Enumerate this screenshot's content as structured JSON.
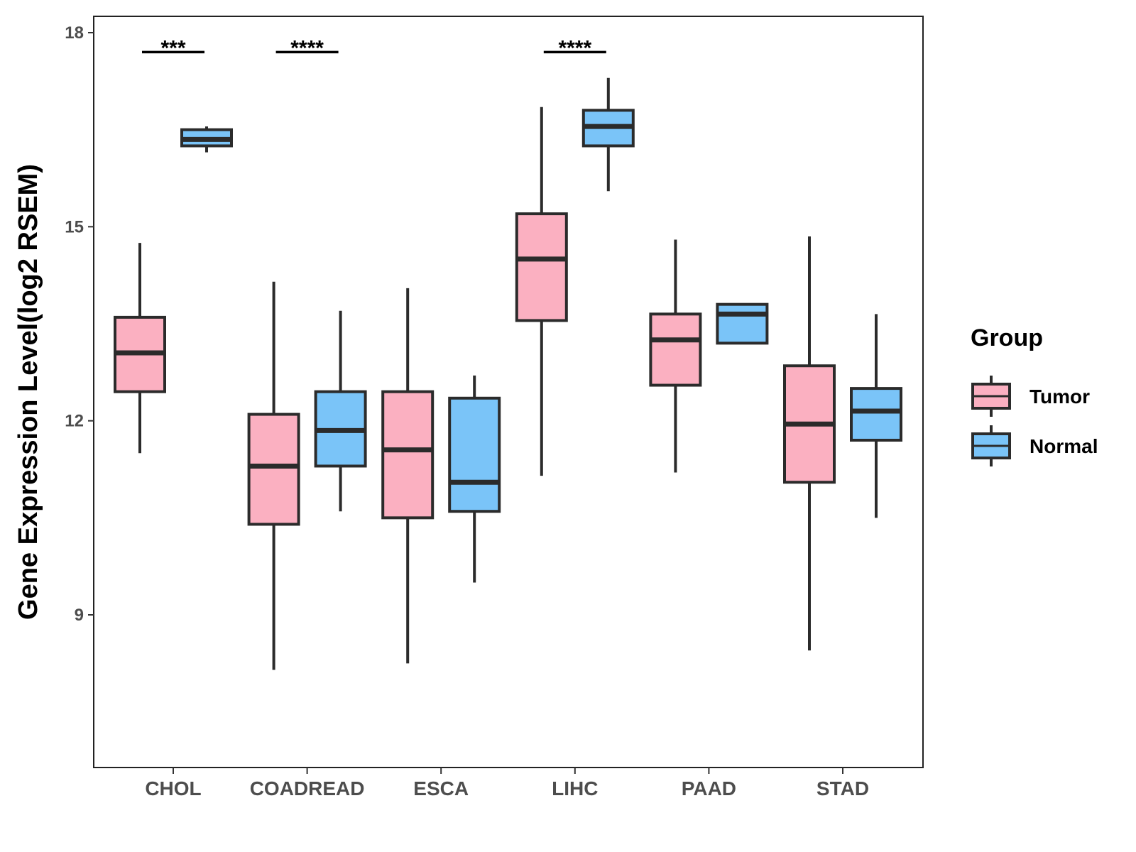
{
  "chart_data": {
    "type": "box",
    "title": "",
    "xlabel": "",
    "ylabel": "Gene Expression Level(log2 RSEM)",
    "ylim": [
      6.6,
      18.25
    ],
    "yticks": [
      9,
      12,
      15,
      18
    ],
    "yticklabels": [
      "9",
      "12",
      "15",
      "18"
    ],
    "categories": [
      "CHOL",
      "COADREAD",
      "ESCA",
      "LIHC",
      "PAAD",
      "STAD"
    ],
    "legend": {
      "title": "Group",
      "position": "right",
      "entries": [
        "Tumor",
        "Normal"
      ]
    },
    "series": [
      {
        "name": "Tumor",
        "color": "#FBB0C1",
        "boxes": [
          {
            "category": "CHOL",
            "min": 11.5,
            "q1": 12.45,
            "median": 13.05,
            "q3": 13.6,
            "max": 14.75
          },
          {
            "category": "COADREAD",
            "min": 8.15,
            "q1": 10.4,
            "median": 11.3,
            "q3": 12.1,
            "max": 14.15
          },
          {
            "category": "ESCA",
            "min": 8.25,
            "q1": 10.5,
            "median": 11.55,
            "q3": 12.45,
            "max": 14.05
          },
          {
            "category": "LIHC",
            "min": 11.15,
            "q1": 13.55,
            "median": 14.5,
            "q3": 15.2,
            "max": 16.85
          },
          {
            "category": "PAAD",
            "min": 11.2,
            "q1": 12.55,
            "median": 13.25,
            "q3": 13.65,
            "max": 14.8
          },
          {
            "category": "STAD",
            "min": 8.45,
            "q1": 11.05,
            "median": 11.95,
            "q3": 12.85,
            "max": 14.85
          }
        ]
      },
      {
        "name": "Normal",
        "color": "#7AC4F8",
        "boxes": [
          {
            "category": "CHOL",
            "min": 16.15,
            "q1": 16.25,
            "median": 16.35,
            "q3": 16.5,
            "max": 16.55
          },
          {
            "category": "COADREAD",
            "min": 10.6,
            "q1": 11.3,
            "median": 11.85,
            "q3": 12.45,
            "max": 13.7
          },
          {
            "category": "ESCA",
            "min": 9.5,
            "q1": 10.6,
            "median": 11.05,
            "q3": 12.35,
            "max": 12.7
          },
          {
            "category": "LIHC",
            "min": 15.55,
            "q1": 16.25,
            "median": 16.55,
            "q3": 16.8,
            "max": 17.3
          },
          {
            "category": "PAAD",
            "min": 13.2,
            "q1": 13.2,
            "median": 13.65,
            "q3": 13.8,
            "max": 13.8
          },
          {
            "category": "STAD",
            "min": 10.5,
            "q1": 11.7,
            "median": 12.15,
            "q3": 12.5,
            "max": 13.65
          }
        ]
      }
    ],
    "significance": [
      {
        "category": "CHOL",
        "label": "***",
        "y": 17.7
      },
      {
        "category": "COADREAD",
        "label": "****",
        "y": 17.7
      },
      {
        "category": "LIHC",
        "label": "****",
        "y": 17.7
      }
    ]
  }
}
